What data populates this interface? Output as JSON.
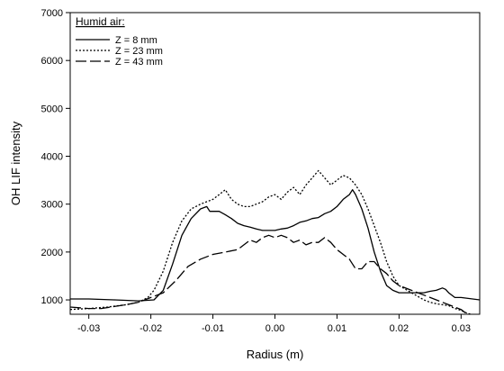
{
  "chart_data": {
    "type": "line",
    "xlabel": "Radius (m)",
    "ylabel": "OH LIF intensity",
    "xlim": [
      -0.033,
      0.033
    ],
    "ylim": [
      700,
      7000
    ],
    "x_ticks": [
      -0.03,
      -0.02,
      -0.01,
      0.0,
      0.01,
      0.02,
      0.03
    ],
    "x_tick_labels": [
      "-0.03",
      "-0.02",
      "-0.01",
      "0.00",
      "0.01",
      "0.02",
      "0.03"
    ],
    "y_ticks": [
      1000,
      2000,
      3000,
      4000,
      5000,
      6000,
      7000
    ],
    "y_tick_labels": [
      "1000",
      "2000",
      "3000",
      "4000",
      "5000",
      "6000",
      "7000"
    ],
    "legend_title": "Humid air:",
    "legend_position": "top-left",
    "grid": false,
    "series": [
      {
        "name": "Z = 8 mm",
        "dash": "solid",
        "color": "#000000",
        "x": [
          -0.033,
          -0.03,
          -0.026,
          -0.022,
          -0.0195,
          -0.018,
          -0.0165,
          -0.015,
          -0.0135,
          -0.012,
          -0.011,
          -0.0105,
          -0.009,
          -0.008,
          -0.007,
          -0.006,
          -0.005,
          -0.004,
          -0.003,
          -0.002,
          -0.001,
          0.0,
          0.001,
          0.002,
          0.003,
          0.004,
          0.005,
          0.006,
          0.007,
          0.008,
          0.009,
          0.01,
          0.011,
          0.012,
          0.0125,
          0.013,
          0.014,
          0.015,
          0.016,
          0.017,
          0.018,
          0.019,
          0.02,
          0.022,
          0.024,
          0.025,
          0.026,
          0.027,
          0.0275,
          0.028,
          0.029,
          0.03,
          0.033
        ],
        "y": [
          1020,
          1020,
          1000,
          980,
          1000,
          1200,
          1750,
          2350,
          2700,
          2900,
          2950,
          2850,
          2850,
          2780,
          2700,
          2600,
          2550,
          2520,
          2480,
          2450,
          2450,
          2450,
          2480,
          2500,
          2550,
          2620,
          2650,
          2700,
          2720,
          2800,
          2850,
          2950,
          3100,
          3200,
          3300,
          3200,
          2900,
          2500,
          2000,
          1600,
          1300,
          1200,
          1150,
          1150,
          1150,
          1180,
          1200,
          1250,
          1220,
          1150,
          1050,
          1050,
          1000
        ]
      },
      {
        "name": "Z = 23 mm",
        "dash": "dotted",
        "color": "#000000",
        "x": [
          -0.033,
          -0.03,
          -0.027,
          -0.024,
          -0.022,
          -0.0205,
          -0.0195,
          -0.018,
          -0.0165,
          -0.015,
          -0.0135,
          -0.012,
          -0.011,
          -0.01,
          -0.009,
          -0.008,
          -0.007,
          -0.006,
          -0.005,
          -0.004,
          -0.003,
          -0.002,
          -0.001,
          0.0,
          0.001,
          0.002,
          0.003,
          0.004,
          0.005,
          0.006,
          0.007,
          0.008,
          0.009,
          0.01,
          0.011,
          0.012,
          0.013,
          0.014,
          0.015,
          0.016,
          0.017,
          0.018,
          0.019,
          0.02,
          0.022,
          0.024,
          0.025,
          0.026,
          0.027,
          0.028,
          0.029,
          0.03,
          0.031,
          0.033
        ],
        "y": [
          800,
          820,
          850,
          900,
          950,
          1050,
          1200,
          1600,
          2200,
          2650,
          2900,
          3000,
          3050,
          3100,
          3200,
          3300,
          3100,
          3000,
          2950,
          2950,
          3000,
          3050,
          3150,
          3200,
          3100,
          3250,
          3350,
          3200,
          3400,
          3550,
          3700,
          3550,
          3400,
          3500,
          3600,
          3550,
          3400,
          3200,
          2900,
          2550,
          2200,
          1800,
          1500,
          1300,
          1150,
          1000,
          950,
          920,
          900,
          880,
          820,
          780,
          720,
          650
        ]
      },
      {
        "name": "Z = 43 mm",
        "dash": "dashed",
        "color": "#000000",
        "x": [
          -0.033,
          -0.03,
          -0.028,
          -0.026,
          -0.024,
          -0.022,
          -0.02,
          -0.018,
          -0.016,
          -0.015,
          -0.014,
          -0.012,
          -0.01,
          -0.008,
          -0.006,
          -0.005,
          -0.004,
          -0.003,
          -0.002,
          -0.001,
          0.0,
          0.001,
          0.002,
          0.003,
          0.004,
          0.005,
          0.006,
          0.007,
          0.008,
          0.009,
          0.01,
          0.011,
          0.012,
          0.013,
          0.014,
          0.015,
          0.016,
          0.017,
          0.018,
          0.019,
          0.02,
          0.022,
          0.024,
          0.026,
          0.027,
          0.028,
          0.029,
          0.03,
          0.031
        ],
        "y": [
          850,
          820,
          820,
          860,
          900,
          950,
          1050,
          1150,
          1400,
          1550,
          1700,
          1850,
          1950,
          2000,
          2050,
          2150,
          2250,
          2200,
          2300,
          2350,
          2300,
          2350,
          2300,
          2200,
          2250,
          2150,
          2200,
          2200,
          2300,
          2200,
          2050,
          1950,
          1850,
          1650,
          1650,
          1800,
          1800,
          1650,
          1550,
          1400,
          1300,
          1200,
          1100,
          1000,
          950,
          900,
          850,
          800,
          700
        ]
      }
    ]
  }
}
